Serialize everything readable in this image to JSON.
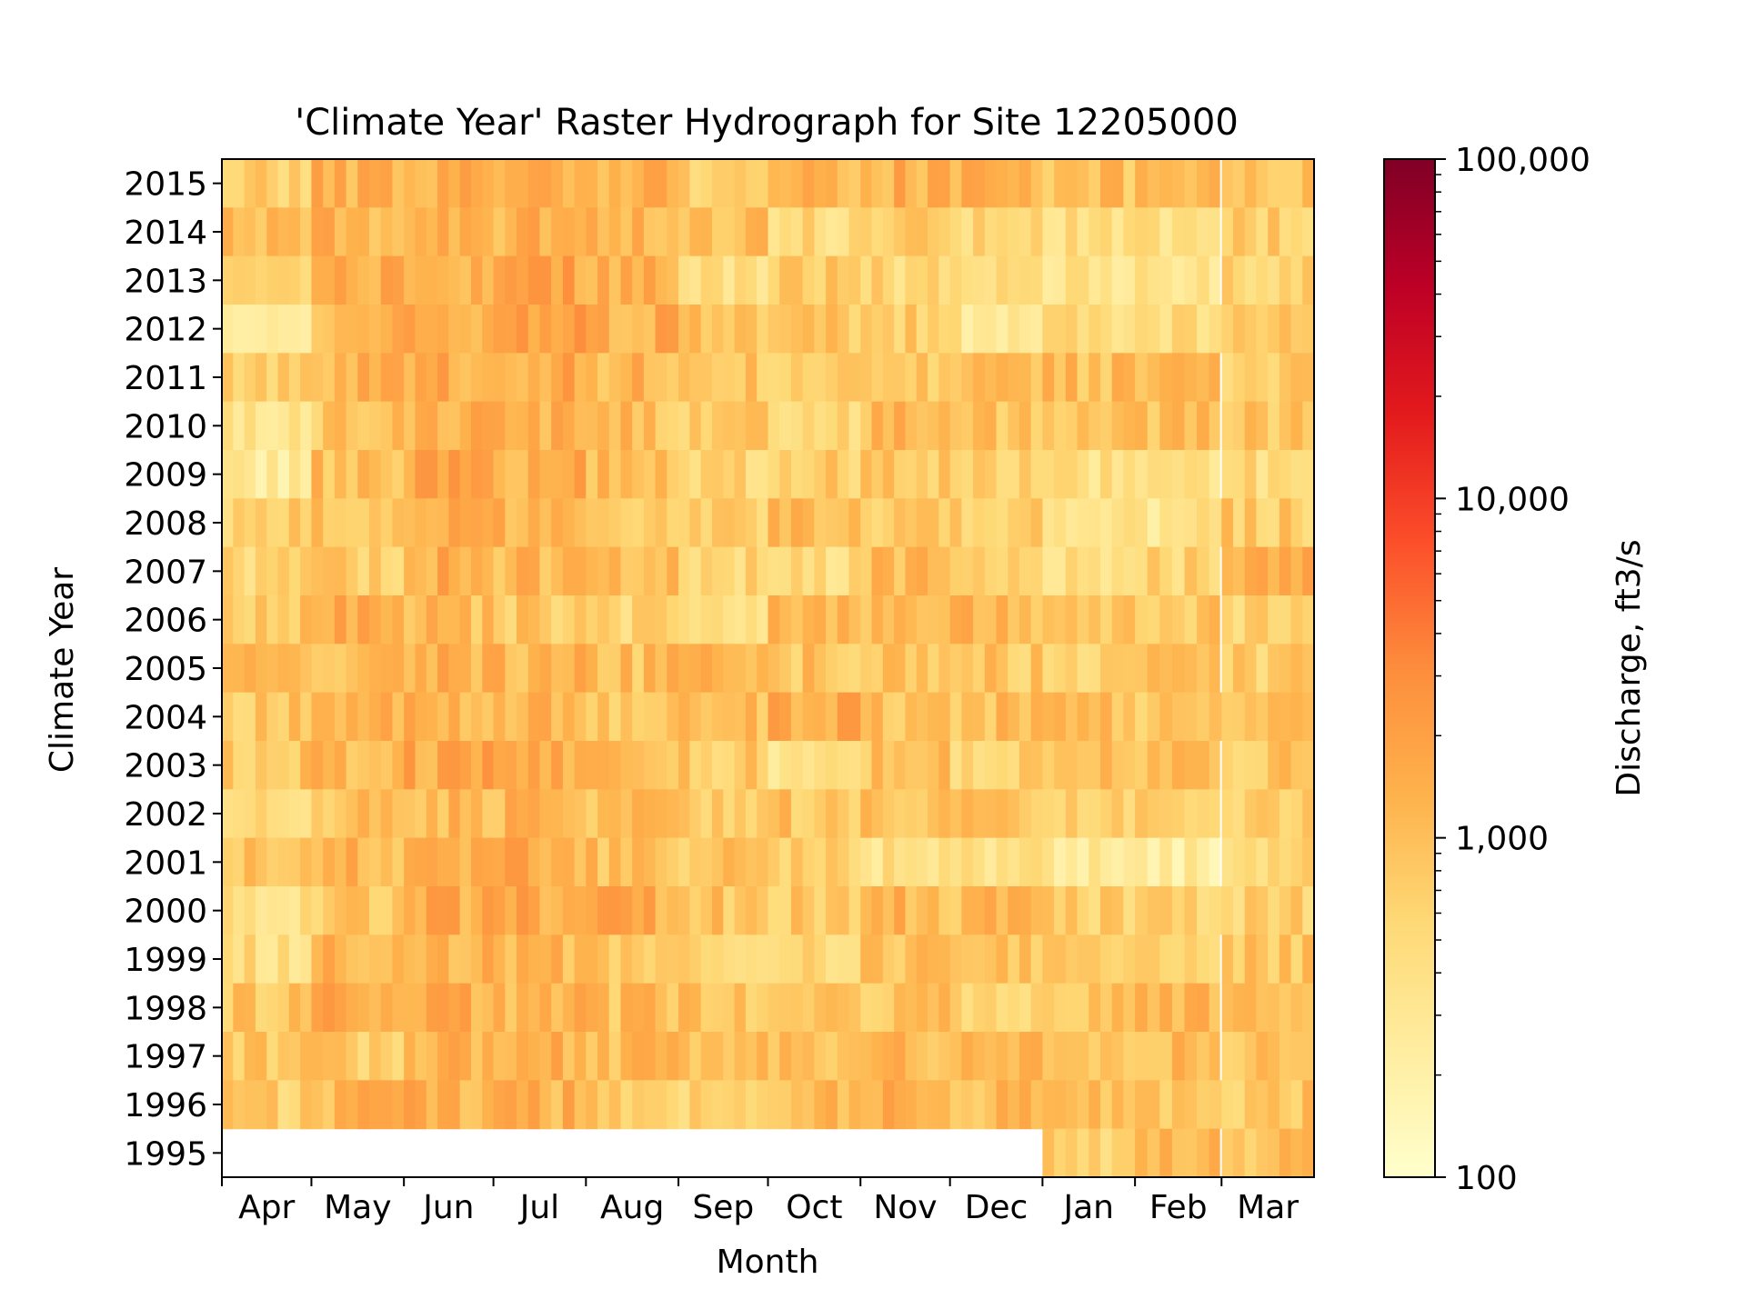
{
  "chart_data": {
    "type": "heatmap",
    "title": "'Climate Year' Raster Hydrograph for Site 12205000",
    "xlabel": "Month",
    "ylabel": "Climate Year",
    "x_tick_labels": [
      "Apr",
      "May",
      "Jun",
      "Jul",
      "Aug",
      "Sep",
      "Oct",
      "Nov",
      "Dec",
      "Jan",
      "Feb",
      "Mar"
    ],
    "y_tick_labels": [
      "2015",
      "2014",
      "2013",
      "2012",
      "2011",
      "2010",
      "2009",
      "2008",
      "2007",
      "2006",
      "2005",
      "2004",
      "2003",
      "2002",
      "2001",
      "2000",
      "1999",
      "1998",
      "1997",
      "1996",
      "1995"
    ],
    "colorbar": {
      "label": "Discharge, ft3/s",
      "scale": "log",
      "range": [
        100,
        100000
      ],
      "tick_labels": [
        "100,000",
        "10,000",
        "1,000",
        "100"
      ],
      "tick_values": [
        100000,
        10000,
        1000,
        100
      ],
      "colormap": "YlOrRd",
      "colors": [
        "#ffffcc",
        "#ffeda0",
        "#fed976",
        "#feb24c",
        "#fd8d3c",
        "#fc4e2a",
        "#e31a1c",
        "#bd0026",
        "#800026"
      ]
    },
    "series": [
      {
        "year": "2015",
        "monthly_median_cfs": [
          650,
          1300,
          1500,
          1500,
          1300,
          800,
          1100,
          1400,
          1500,
          1000,
          1100,
          1000
        ]
      },
      {
        "year": "2014",
        "monthly_median_cfs": [
          900,
          1200,
          1500,
          1400,
          1100,
          900,
          500,
          600,
          500,
          450,
          450,
          750
        ]
      },
      {
        "year": "2013",
        "monthly_median_cfs": [
          800,
          1300,
          1600,
          1700,
          1200,
          450,
          700,
          550,
          450,
          350,
          350,
          600
        ]
      },
      {
        "year": "2012",
        "monthly_median_cfs": [
          300,
          1200,
          1500,
          1800,
          1500,
          1000,
          800,
          700,
          350,
          550,
          550,
          750
        ]
      },
      {
        "year": "2011",
        "monthly_median_cfs": [
          800,
          1200,
          1500,
          1500,
          1200,
          900,
          800,
          800,
          900,
          1000,
          900,
          650
        ]
      },
      {
        "year": "2010",
        "monthly_median_cfs": [
          350,
          900,
          1500,
          1300,
          1000,
          650,
          600,
          1100,
          900,
          900,
          900,
          800
        ]
      },
      {
        "year": "2009",
        "monthly_median_cfs": [
          250,
          1000,
          1700,
          1500,
          1200,
          600,
          700,
          800,
          650,
          400,
          350,
          500
        ]
      },
      {
        "year": "2008",
        "monthly_median_cfs": [
          700,
          900,
          1500,
          1400,
          900,
          700,
          1000,
          800,
          600,
          400,
          350,
          750
        ]
      },
      {
        "year": "2007",
        "monthly_median_cfs": [
          500,
          700,
          1400,
          1200,
          900,
          600,
          450,
          1100,
          800,
          500,
          600,
          1200
        ]
      },
      {
        "year": "2006",
        "monthly_median_cfs": [
          900,
          1300,
          1000,
          800,
          600,
          500,
          1000,
          1000,
          1100,
          1000,
          800,
          600
        ]
      },
      {
        "year": "2005",
        "monthly_median_cfs": [
          900,
          1200,
          1300,
          1200,
          1000,
          1100,
          900,
          1000,
          800,
          600,
          800,
          700
        ]
      },
      {
        "year": "2004",
        "monthly_median_cfs": [
          800,
          1100,
          1200,
          1200,
          900,
          900,
          1600,
          1000,
          1000,
          900,
          800,
          800
        ]
      },
      {
        "year": "2003",
        "monthly_median_cfs": [
          800,
          1200,
          1600,
          1500,
          1200,
          800,
          350,
          1000,
          600,
          900,
          1100,
          800
        ]
      },
      {
        "year": "2002",
        "monthly_median_cfs": [
          400,
          900,
          1200,
          1200,
          1100,
          800,
          900,
          1000,
          900,
          800,
          600,
          750
        ]
      },
      {
        "year": "2001",
        "monthly_median_cfs": [
          900,
          1200,
          1400,
          1400,
          1000,
          800,
          700,
          400,
          400,
          300,
          250,
          500
        ]
      },
      {
        "year": "2000",
        "monthly_median_cfs": [
          450,
          800,
          1500,
          1600,
          1500,
          900,
          800,
          1200,
          1000,
          650,
          600,
          650
        ]
      },
      {
        "year": "1999",
        "monthly_median_cfs": [
          450,
          1200,
          1300,
          1100,
          800,
          700,
          500,
          1000,
          900,
          750,
          650,
          800
        ]
      },
      {
        "year": "1998",
        "monthly_median_cfs": [
          900,
          1400,
          1400,
          1200,
          1000,
          900,
          1100,
          900,
          700,
          1000,
          1000,
          900
        ]
      },
      {
        "year": "1997",
        "monthly_median_cfs": [
          800,
          700,
          1200,
          1200,
          1000,
          900,
          900,
          1200,
          1200,
          1100,
          1000,
          900
        ]
      },
      {
        "year": "1996",
        "monthly_median_cfs": [
          700,
          1200,
          1400,
          1300,
          900,
          700,
          1000,
          1200,
          1000,
          900,
          800,
          800
        ]
      },
      {
        "year": "1995",
        "monthly_median_cfs": [
          null,
          null,
          null,
          null,
          null,
          null,
          null,
          null,
          null,
          600,
          1000,
          900
        ]
      }
    ]
  }
}
